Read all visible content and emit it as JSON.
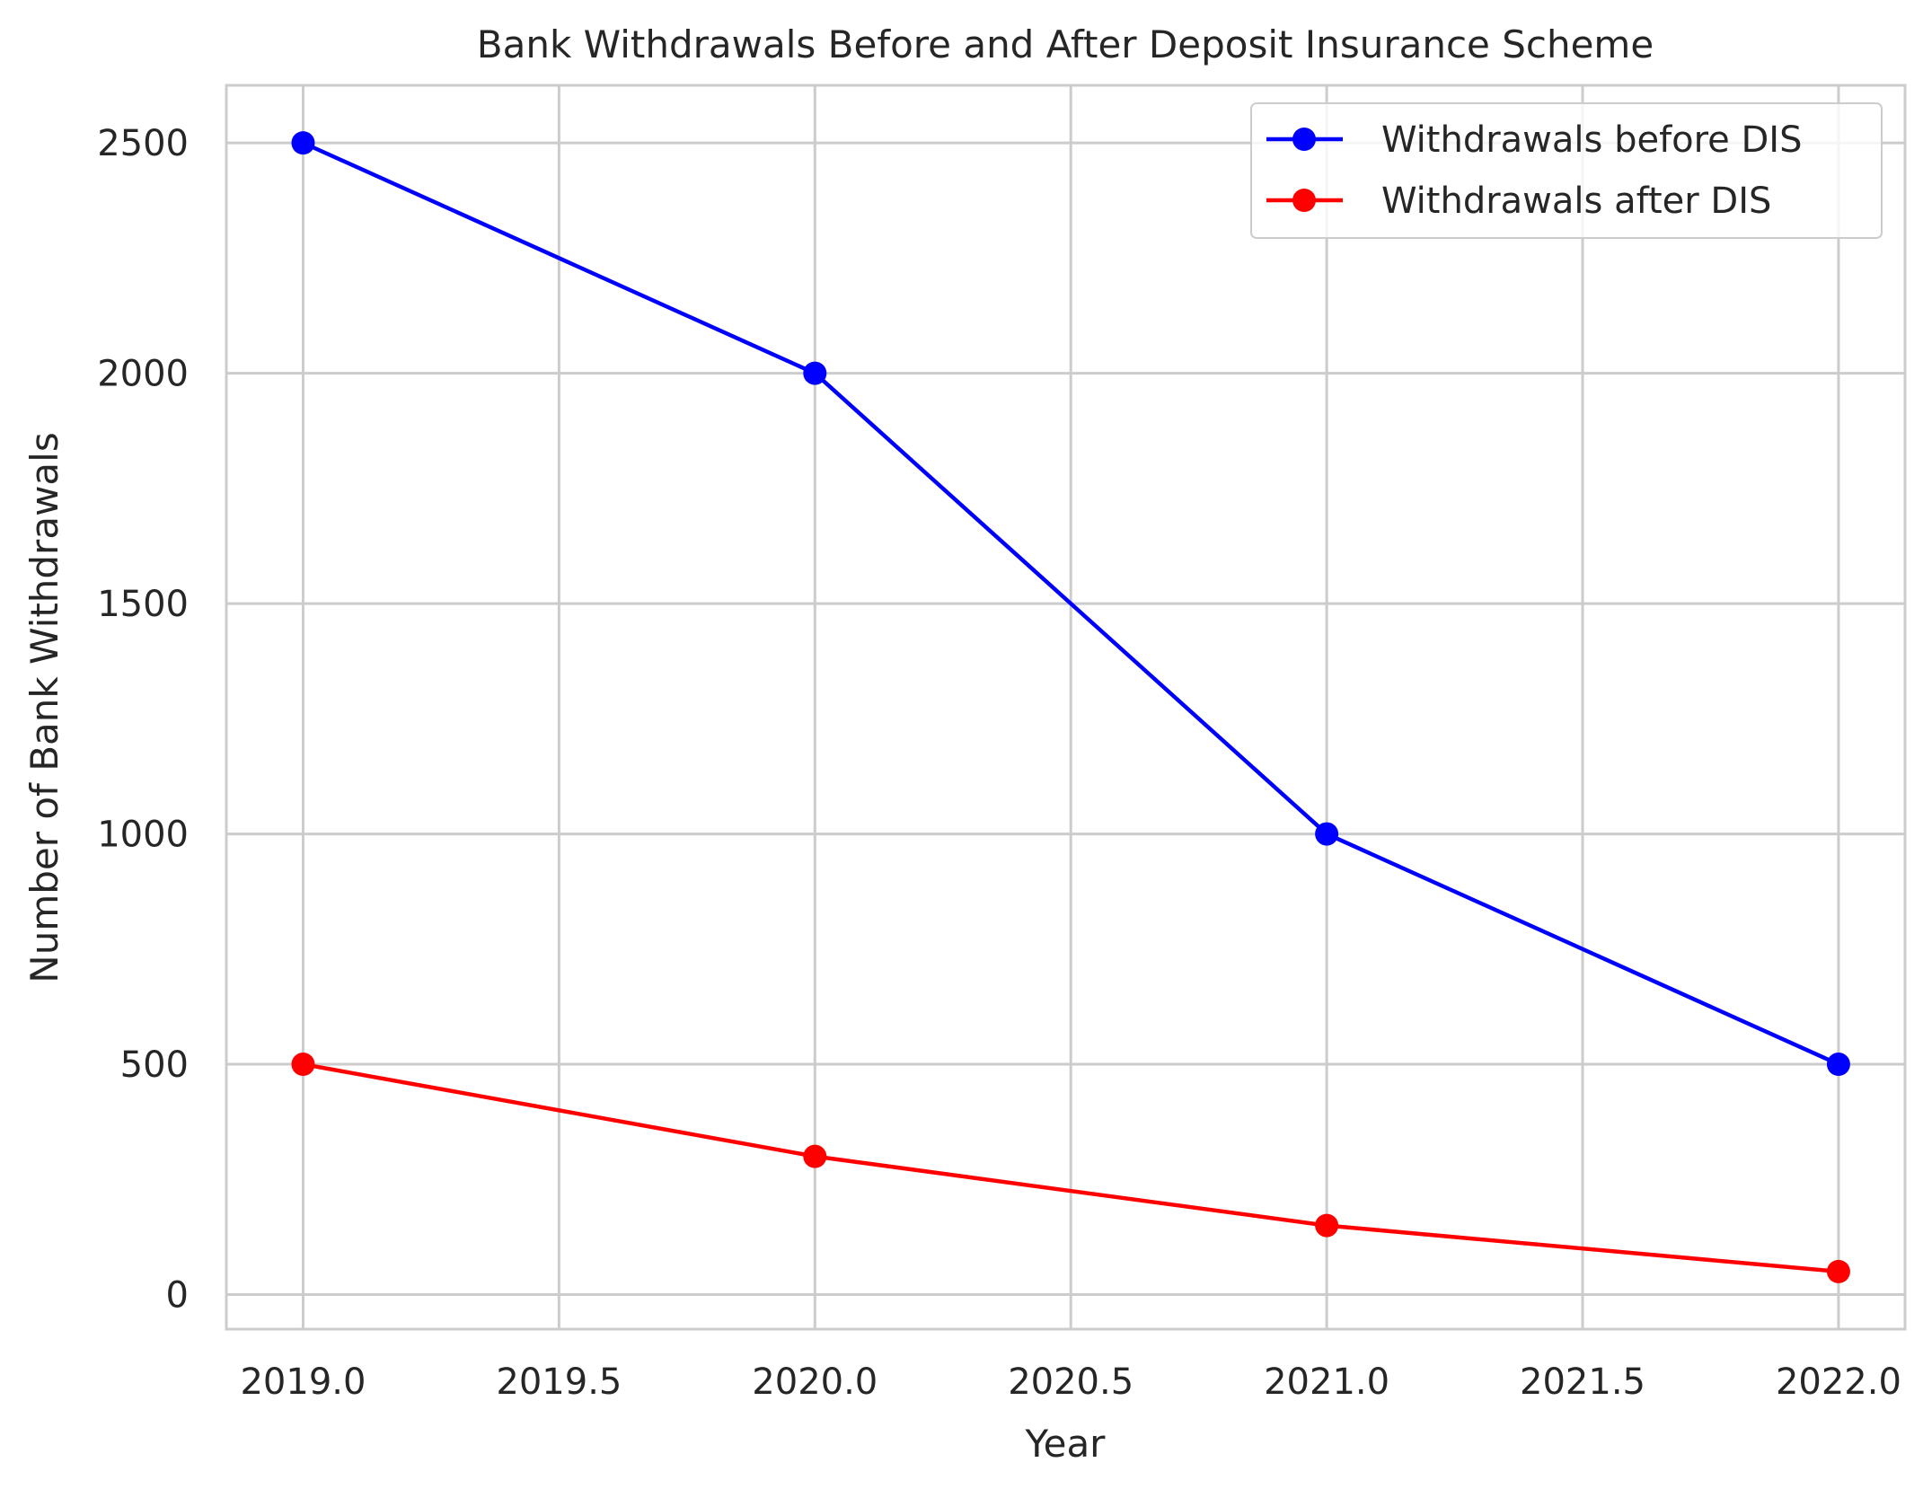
{
  "chart_data": {
    "type": "line",
    "title": "Bank Withdrawals Before and After Deposit Insurance Scheme",
    "xlabel": "Year",
    "ylabel": "Number of Bank Withdrawals",
    "x": [
      2019,
      2020,
      2021,
      2022
    ],
    "xlim": [
      2018.85,
      2022.13
    ],
    "ylim": [
      -75,
      2625
    ],
    "xticks": [
      2019.0,
      2019.5,
      2020.0,
      2020.5,
      2021.0,
      2021.5,
      2022.0
    ],
    "xtick_labels": [
      "2019.0",
      "2019.5",
      "2020.0",
      "2020.5",
      "2021.0",
      "2021.5",
      "2022.0"
    ],
    "yticks": [
      0,
      500,
      1000,
      1500,
      2000,
      2500
    ],
    "ytick_labels": [
      "0",
      "500",
      "1000",
      "1500",
      "2000",
      "2500"
    ],
    "grid": true,
    "legend_position": "top-right",
    "series": [
      {
        "name": "Withdrawals before DIS",
        "values": [
          2500,
          2000,
          1000,
          500
        ],
        "color": "#0000ff",
        "marker": "circle"
      },
      {
        "name": "Withdrawals after DIS",
        "values": [
          500,
          300,
          150,
          50
        ],
        "color": "#ff0000",
        "marker": "circle"
      }
    ]
  }
}
